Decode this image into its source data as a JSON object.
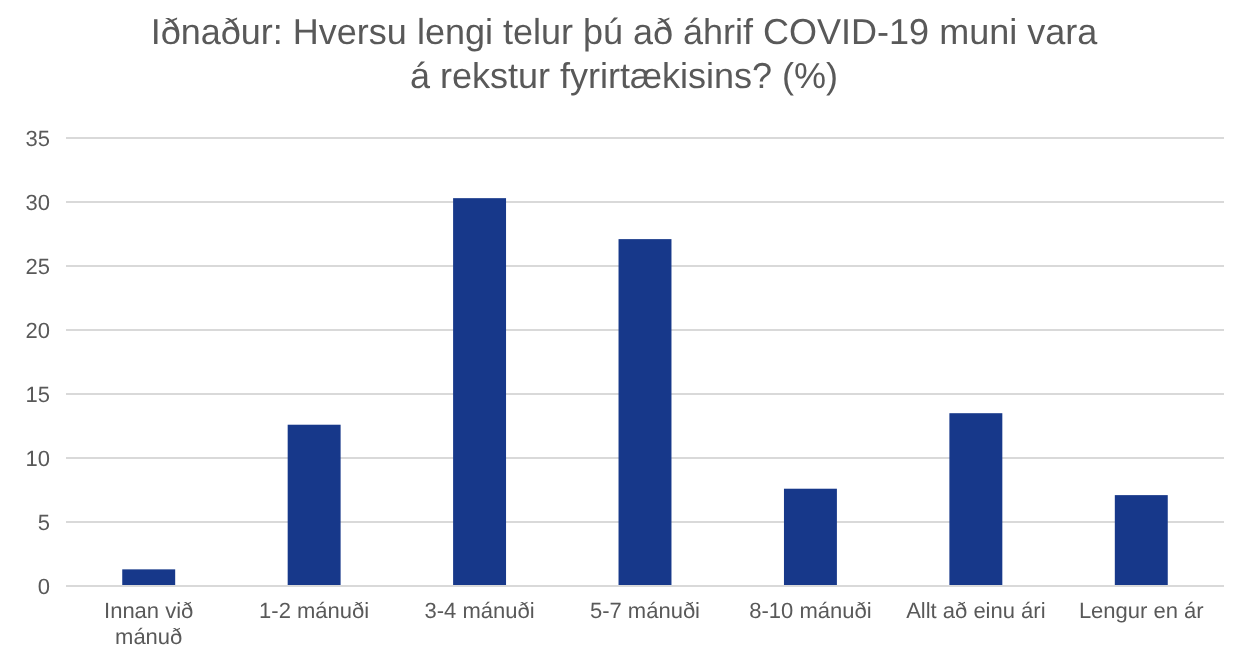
{
  "chart_data": {
    "type": "bar",
    "title": "Iðnaður: Hversu lengi telur þú að áhrif COVID-19 muni vara á rekstur fyrirtækisins? (%)",
    "categories": [
      "Innan við mánuð",
      "1-2 mánuði",
      "3-4 mánuði",
      "5-7 mánuði",
      "8-10 mánuði",
      "Allt að einu ári",
      "Lengur en ár"
    ],
    "values": [
      1.3,
      12.6,
      30.3,
      27.1,
      7.6,
      13.5,
      7.1
    ],
    "color": "#17388a",
    "ylim": [
      0,
      35
    ],
    "yticks": [
      0,
      5,
      10,
      15,
      20,
      25,
      30,
      35
    ],
    "grid": "y"
  }
}
